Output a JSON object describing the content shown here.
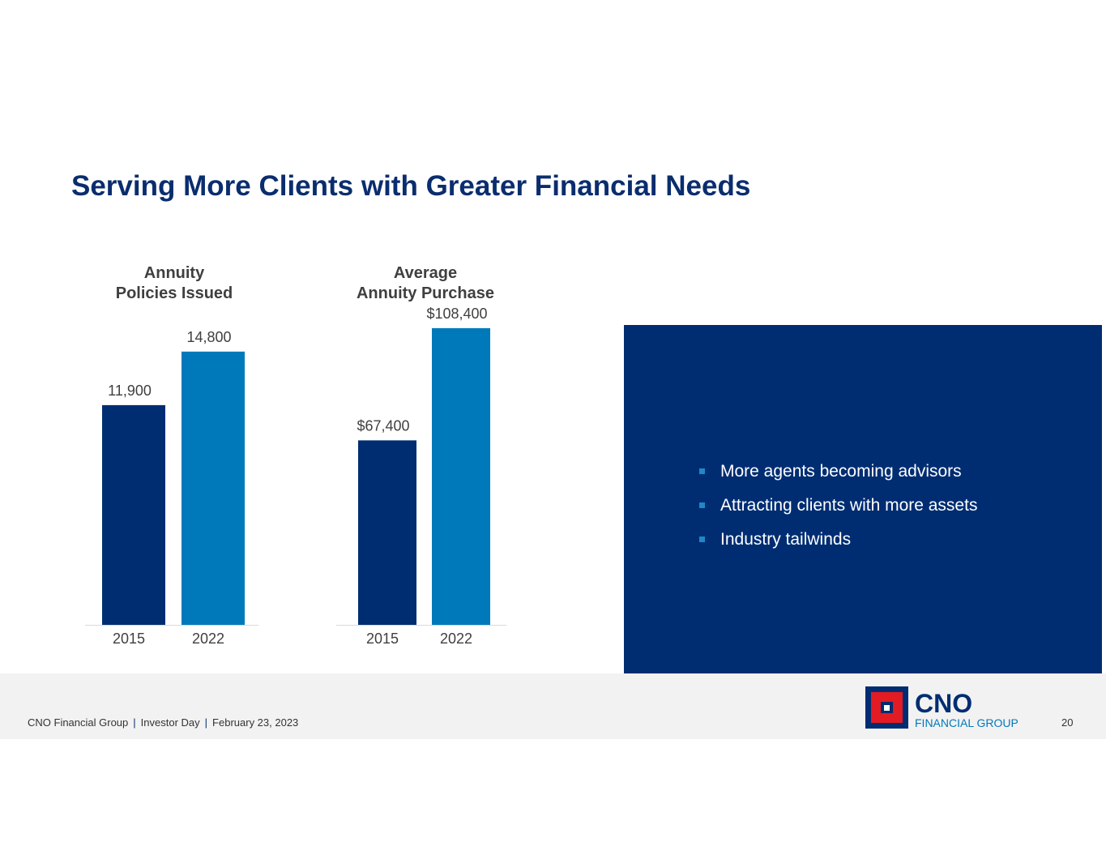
{
  "title": "Serving More Clients with Greater Financial Needs",
  "chart_data": [
    {
      "type": "bar",
      "title_lines": [
        "Annuity",
        "Policies Issued"
      ],
      "categories": [
        "2015",
        "2022"
      ],
      "values": [
        11900,
        14800
      ],
      "value_labels": [
        "11,900",
        "14,800"
      ],
      "colors": [
        "#002d72",
        "#0079bb"
      ],
      "ylim": [
        0,
        16900
      ]
    },
    {
      "type": "bar",
      "title_lines": [
        "Average",
        "Annuity Purchase"
      ],
      "categories": [
        "2015",
        "2022"
      ],
      "values": [
        67400,
        108400
      ],
      "value_labels": [
        "$67,400",
        "$108,400"
      ],
      "colors": [
        "#002d72",
        "#0079bb"
      ],
      "ylim": [
        0,
        114000
      ]
    }
  ],
  "panel": {
    "bullets": [
      "More agents becoming advisors",
      "Attracting clients with more assets",
      "Industry tailwinds"
    ]
  },
  "footer": {
    "company": "CNO Financial Group",
    "event": "Investor Day",
    "date": "February 23, 2023",
    "page": "20"
  },
  "logo": {
    "name": "CNO",
    "subtitle": "FINANCIAL GROUP"
  }
}
